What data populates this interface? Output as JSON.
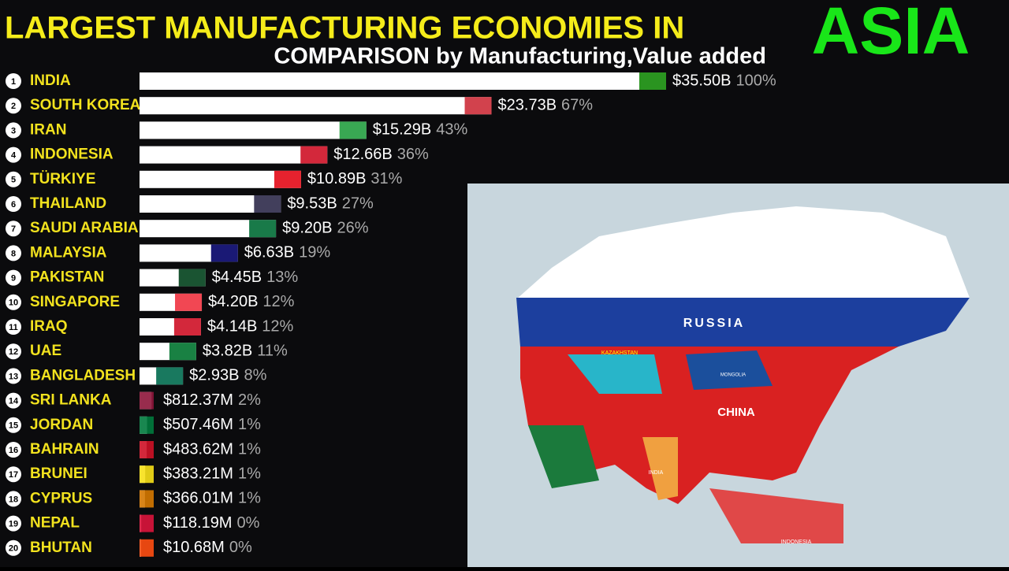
{
  "chart_data": {
    "type": "bar",
    "title": "LARGEST MANUFACTURING ECONOMIES IN",
    "title_highlight": "ASIA",
    "subtitle": "COMPARISON by Manufacturing,Value added",
    "ranks": [
      1,
      2,
      3,
      4,
      5,
      6,
      7,
      8,
      9,
      10,
      11,
      12,
      13,
      14,
      15,
      16,
      17,
      18,
      19,
      20
    ],
    "categories": [
      "INDIA",
      "SOUTH KOREA",
      "IRAN",
      "INDONESIA",
      "TÜRKIYE",
      "THAILAND",
      "SAUDI ARABIA",
      "MALAYSIA",
      "PAKISTAN",
      "SINGAPORE",
      "IRAQ",
      "UAE",
      "BANGLADESH",
      "SRI LANKA",
      "JORDAN",
      "BAHRAIN",
      "BRUNEI",
      "CYPRUS",
      "NEPAL",
      "BHUTAN"
    ],
    "values": [
      35.5,
      23.73,
      15.29,
      12.66,
      10.89,
      9.53,
      9.2,
      6.63,
      4.45,
      4.2,
      4.14,
      3.82,
      2.93,
      0.81237,
      0.50746,
      0.48362,
      0.38321,
      0.36601,
      0.11819,
      0.01068
    ],
    "value_labels": [
      "$35.50B",
      "$23.73B",
      "$15.29B",
      "$12.66B",
      "$10.89B",
      "$9.53B",
      "$9.20B",
      "$6.63B",
      "$4.45B",
      "$4.20B",
      "$4.14B",
      "$3.82B",
      "$2.93B",
      "$812.37M",
      "$507.46M",
      "$483.62M",
      "$383.21M",
      "$366.01M",
      "$118.19M",
      "$10.68M"
    ],
    "shares": [
      "100%",
      "67%",
      "43%",
      "36%",
      "31%",
      "27%",
      "26%",
      "19%",
      "13%",
      "12%",
      "12%",
      "11%",
      "8%",
      "2%",
      "1%",
      "1%",
      "1%",
      "1%",
      "0%",
      "0%"
    ],
    "flag_colors": [
      "#138808",
      "#cd2e3a",
      "#239f40",
      "#ce1126",
      "#e30a17",
      "#2d2a4a",
      "#006c35",
      "#010066",
      "#01411c",
      "#ef3340",
      "#ce1126",
      "#00732f",
      "#006a4e",
      "#8d153a",
      "#007a3d",
      "#ce1126",
      "#f7e017",
      "#d57800",
      "#dc143c",
      "#ff4e12"
    ],
    "color": "#ffffff",
    "xlim": [
      0,
      35.5
    ],
    "map_labels": [
      "RUSSIA",
      "CHINA",
      "KAZAKHSTAN",
      "MONGOLIA",
      "INDIA",
      "INDONESIA"
    ]
  }
}
